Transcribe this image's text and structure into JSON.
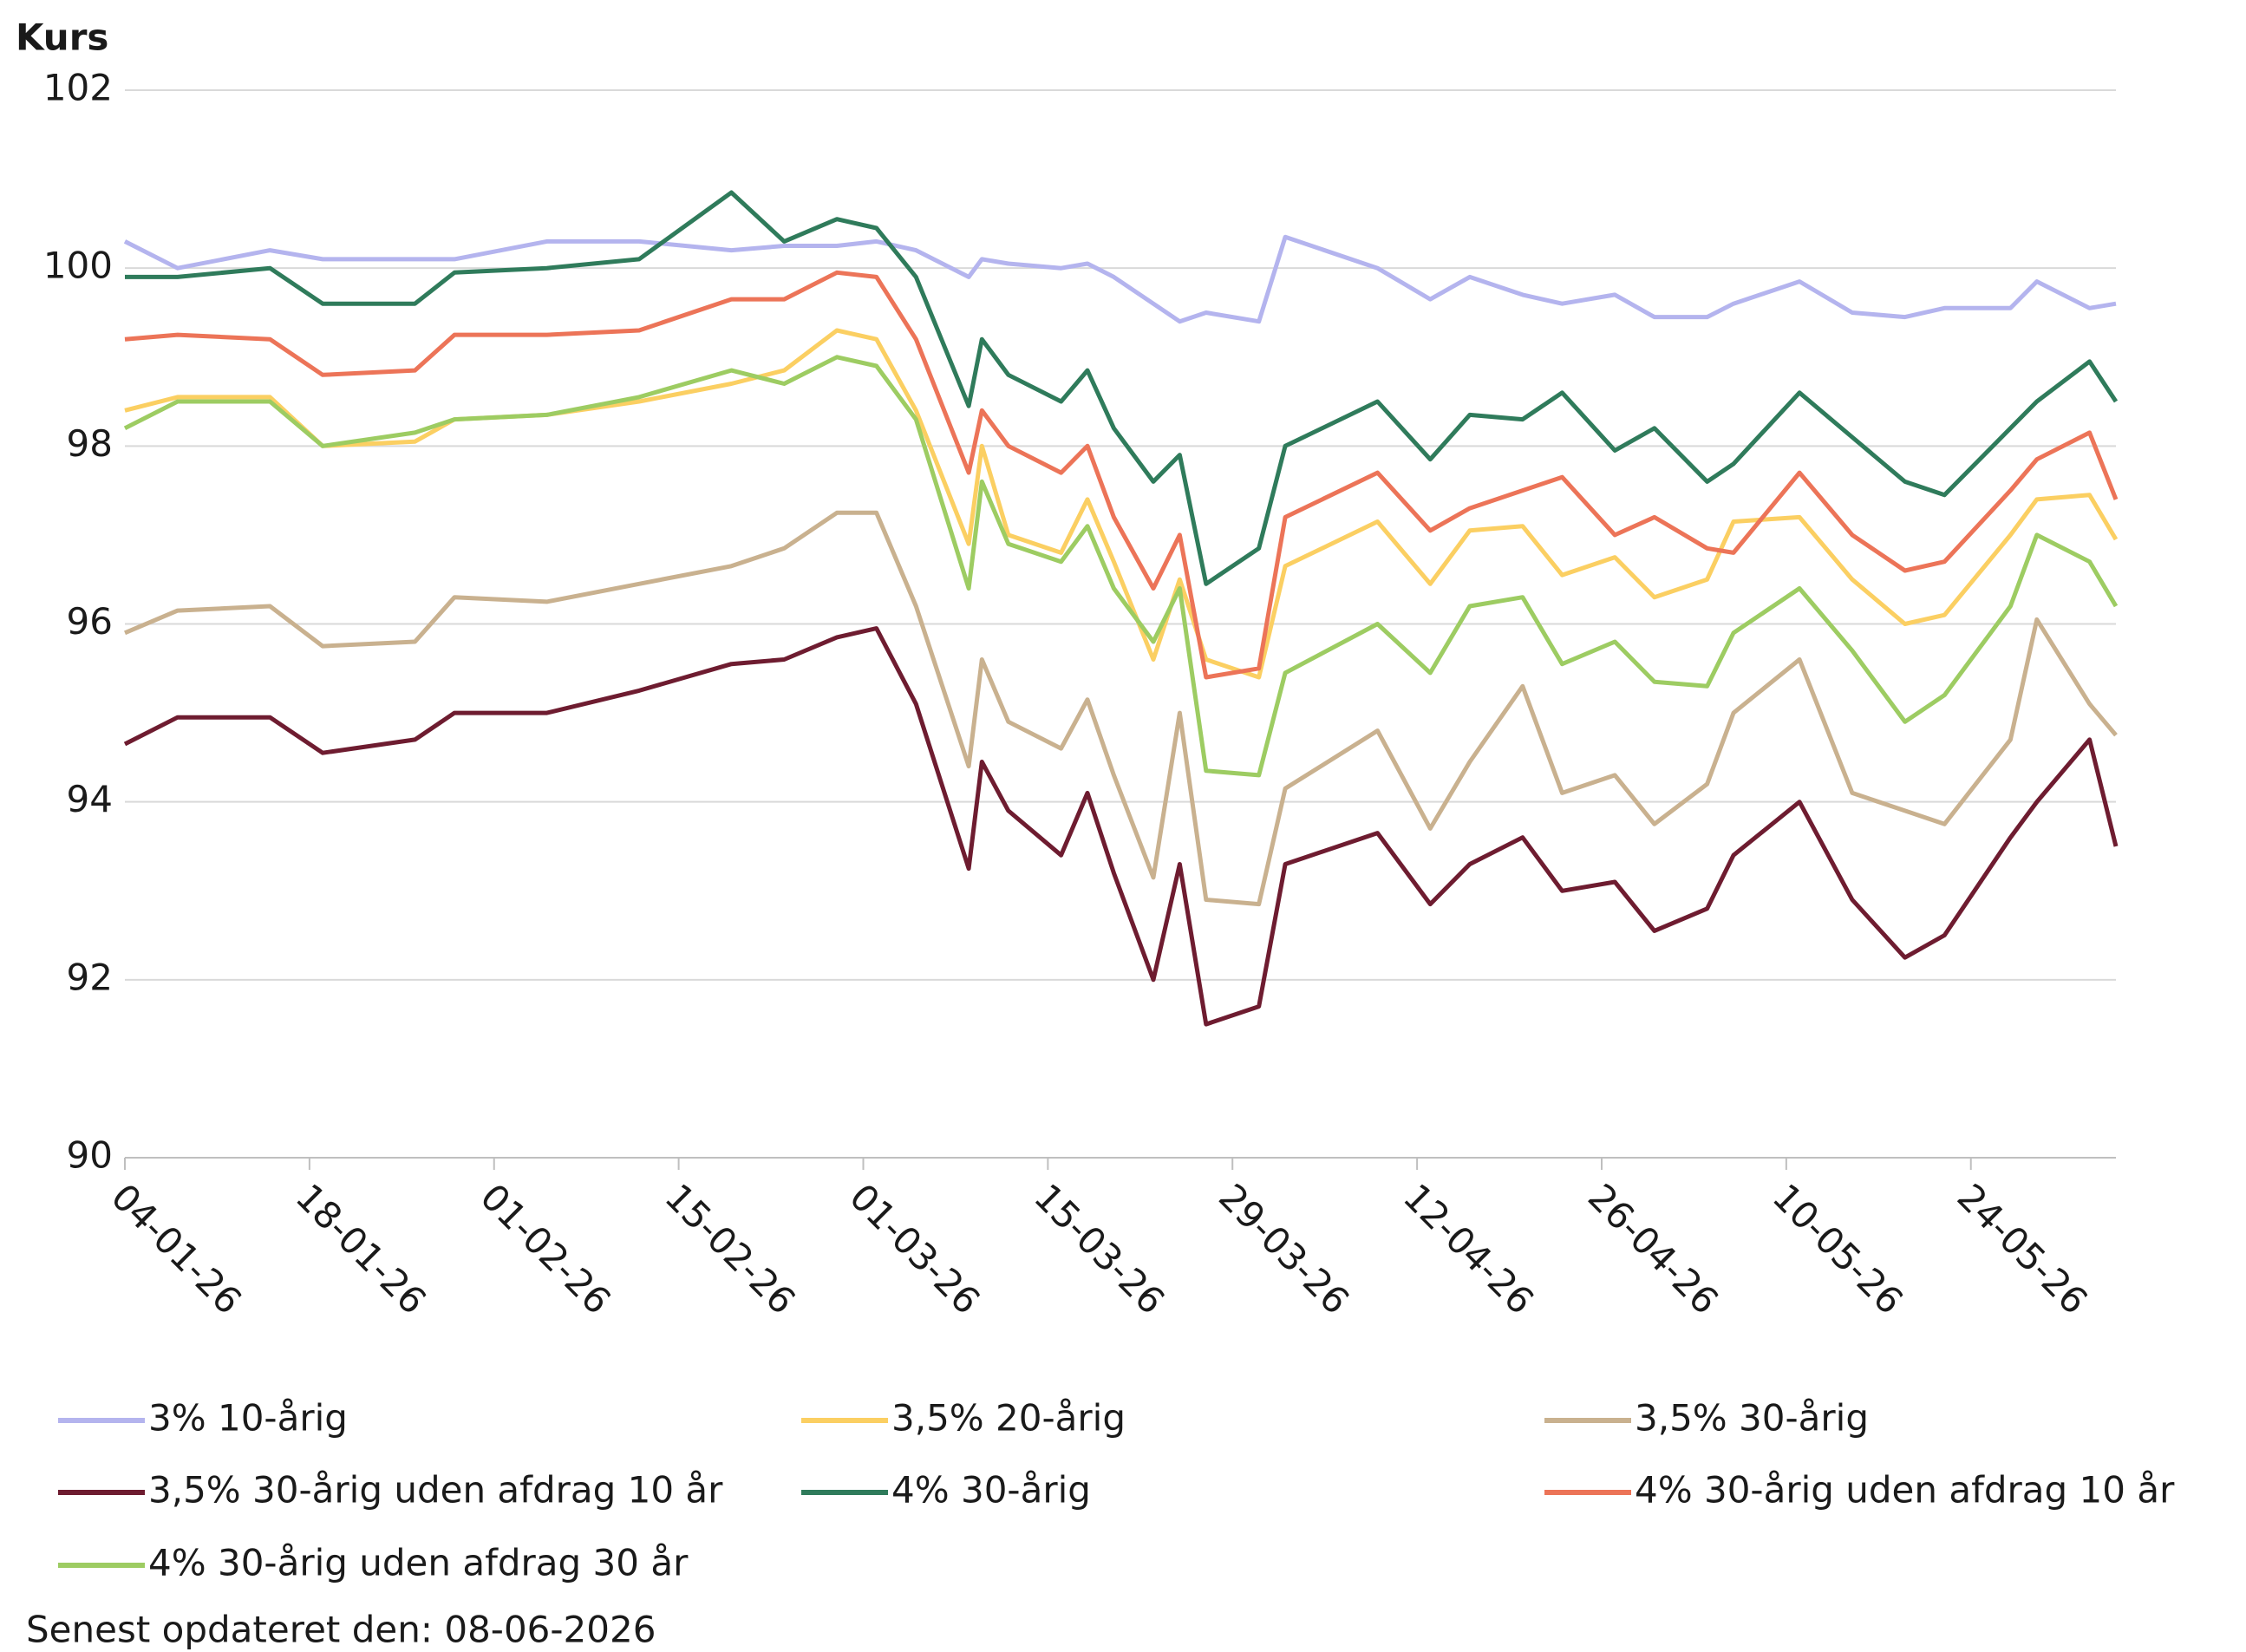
{
  "chart_data": {
    "type": "line",
    "y_label": "Kurs",
    "footnote": "Senest opdateret den: 08-06-2026",
    "ylim": [
      90,
      102
    ],
    "yticks": [
      90,
      92,
      94,
      96,
      98,
      100,
      102
    ],
    "grid": true,
    "xlim": [
      "04-01-26",
      "04-06-26"
    ],
    "xticks": [
      "04-01-26",
      "18-01-26",
      "01-02-26",
      "15-02-26",
      "01-03-26",
      "15-03-26",
      "29-03-26",
      "12-04-26",
      "26-04-26",
      "10-05-26",
      "24-05-26"
    ],
    "legend": "bottom",
    "x": [
      "04-01-26",
      "08-01-26",
      "15-01-26",
      "19-01-26",
      "26-01-26",
      "29-01-26",
      "05-02-26",
      "12-02-26",
      "19-02-26",
      "23-02-26",
      "27-02-26",
      "02-03-26",
      "05-03-26",
      "09-03-26",
      "10-03-26",
      "12-03-26",
      "16-03-26",
      "18-03-26",
      "20-03-26",
      "23-03-26",
      "25-03-26",
      "27-03-26",
      "31-03-26",
      "02-04-26",
      "09-04-26",
      "13-04-26",
      "16-04-26",
      "20-04-26",
      "23-04-26",
      "27-04-26",
      "30-04-26",
      "04-05-26",
      "06-05-26",
      "11-05-26",
      "15-05-26",
      "19-05-26",
      "22-05-26",
      "27-05-26",
      "29-05-26",
      "02-06-26",
      "04-06-26"
    ],
    "series": [
      {
        "name": "3% 10-årig",
        "color": "#b4b4ee",
        "values": [
          100.3,
          100.0,
          100.2,
          100.1,
          100.1,
          100.1,
          100.3,
          100.3,
          100.2,
          100.25,
          100.25,
          100.3,
          100.2,
          99.9,
          100.1,
          100.05,
          100.0,
          100.05,
          99.9,
          99.6,
          99.4,
          99.5,
          99.4,
          100.35,
          100.0,
          99.65,
          99.9,
          99.7,
          99.6,
          99.7,
          99.45,
          99.45,
          99.6,
          99.85,
          99.5,
          99.45,
          99.55,
          99.55,
          99.85,
          99.55,
          99.6
        ]
      },
      {
        "name": "3,5% 20-årig",
        "color": "#fbcf62",
        "values": [
          98.4,
          98.55,
          98.55,
          98.0,
          98.05,
          98.3,
          98.35,
          98.5,
          98.7,
          98.85,
          99.3,
          99.2,
          98.4,
          96.9,
          98.0,
          97.0,
          96.8,
          97.4,
          96.7,
          95.6,
          96.5,
          95.6,
          95.4,
          96.65,
          97.15,
          96.45,
          97.05,
          97.1,
          96.55,
          96.75,
          96.3,
          96.5,
          97.15,
          97.2,
          96.5,
          96.0,
          96.1,
          97.0,
          97.4,
          97.45,
          96.95
        ]
      },
      {
        "name": "3,5% 30-årig",
        "color": "#c9b18f",
        "values": [
          95.9,
          96.15,
          96.2,
          95.75,
          95.8,
          96.3,
          96.25,
          96.45,
          96.65,
          96.85,
          97.25,
          97.25,
          96.2,
          94.4,
          95.6,
          94.9,
          94.6,
          95.15,
          94.3,
          93.15,
          95.0,
          92.9,
          92.85,
          94.15,
          94.8,
          93.7,
          94.45,
          95.3,
          94.1,
          94.3,
          93.75,
          94.2,
          95.0,
          95.6,
          94.1,
          93.9,
          93.75,
          94.7,
          96.05,
          95.1,
          94.75
        ]
      },
      {
        "name": "3,5% 30-årig uden afdrag 10 år",
        "color": "#6e1c30",
        "values": [
          94.65,
          94.95,
          94.95,
          94.55,
          94.7,
          95.0,
          95.0,
          95.25,
          95.55,
          95.6,
          95.85,
          95.95,
          95.1,
          93.25,
          94.45,
          93.9,
          93.4,
          94.1,
          93.2,
          92.0,
          93.3,
          91.5,
          91.7,
          93.3,
          93.65,
          92.85,
          93.3,
          93.6,
          93.0,
          93.1,
          92.55,
          92.8,
          93.4,
          94.0,
          92.9,
          92.25,
          92.5,
          93.6,
          94.0,
          94.7,
          93.5
        ]
      },
      {
        "name": "4% 30-årig",
        "color": "#2f7b5b",
        "values": [
          99.9,
          99.9,
          100.0,
          99.6,
          99.6,
          99.95,
          100.0,
          100.1,
          100.85,
          100.3,
          100.55,
          100.45,
          99.9,
          98.45,
          99.2,
          98.8,
          98.5,
          98.85,
          98.2,
          97.6,
          97.9,
          96.45,
          96.85,
          98.0,
          98.5,
          97.85,
          98.35,
          98.3,
          98.6,
          97.95,
          98.2,
          97.6,
          97.8,
          98.6,
          98.1,
          97.6,
          97.45,
          98.2,
          98.5,
          98.95,
          98.5
        ]
      },
      {
        "name": "4% 30-årig uden afdrag 10 år",
        "color": "#ec7458",
        "values": [
          99.2,
          99.25,
          99.2,
          98.8,
          98.85,
          99.25,
          99.25,
          99.3,
          99.65,
          99.65,
          99.95,
          99.9,
          99.2,
          97.7,
          98.4,
          98.0,
          97.7,
          98.0,
          97.2,
          96.4,
          97.0,
          95.4,
          95.5,
          97.2,
          97.7,
          97.05,
          97.3,
          97.5,
          97.65,
          97.0,
          97.2,
          96.85,
          96.8,
          97.7,
          97.0,
          96.6,
          96.7,
          97.5,
          97.85,
          98.15,
          97.4
        ]
      },
      {
        "name": "4% 30-årig uden afdrag 30 år",
        "color": "#9dcc62",
        "values": [
          98.2,
          98.5,
          98.5,
          98.0,
          98.15,
          98.3,
          98.35,
          98.55,
          98.85,
          98.7,
          99.0,
          98.9,
          98.3,
          96.4,
          97.6,
          96.9,
          96.7,
          97.1,
          96.4,
          95.8,
          96.4,
          94.35,
          94.3,
          95.45,
          96.0,
          95.45,
          96.2,
          96.3,
          95.55,
          95.8,
          95.35,
          95.3,
          95.9,
          96.4,
          95.7,
          94.9,
          95.2,
          96.2,
          97.0,
          96.7,
          96.2
        ]
      }
    ]
  }
}
